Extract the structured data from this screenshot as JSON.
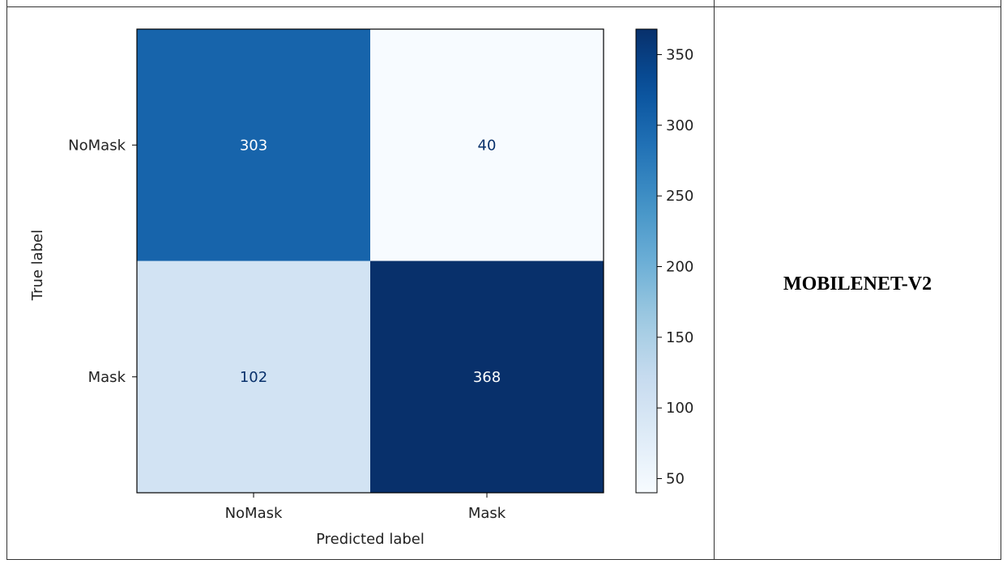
{
  "model_label": "MOBILENET-V2",
  "chart_data": {
    "type": "heatmap",
    "xlabel": "Predicted label",
    "ylabel": "True label",
    "x_categories": [
      "NoMask",
      "Mask"
    ],
    "y_categories": [
      "NoMask",
      "Mask"
    ],
    "matrix": [
      [
        303,
        40
      ],
      [
        102,
        368
      ]
    ],
    "colormap": "Blues",
    "colorbar": {
      "ticks": [
        50,
        100,
        150,
        200,
        250,
        300,
        350
      ],
      "range": [
        40,
        368
      ]
    }
  }
}
